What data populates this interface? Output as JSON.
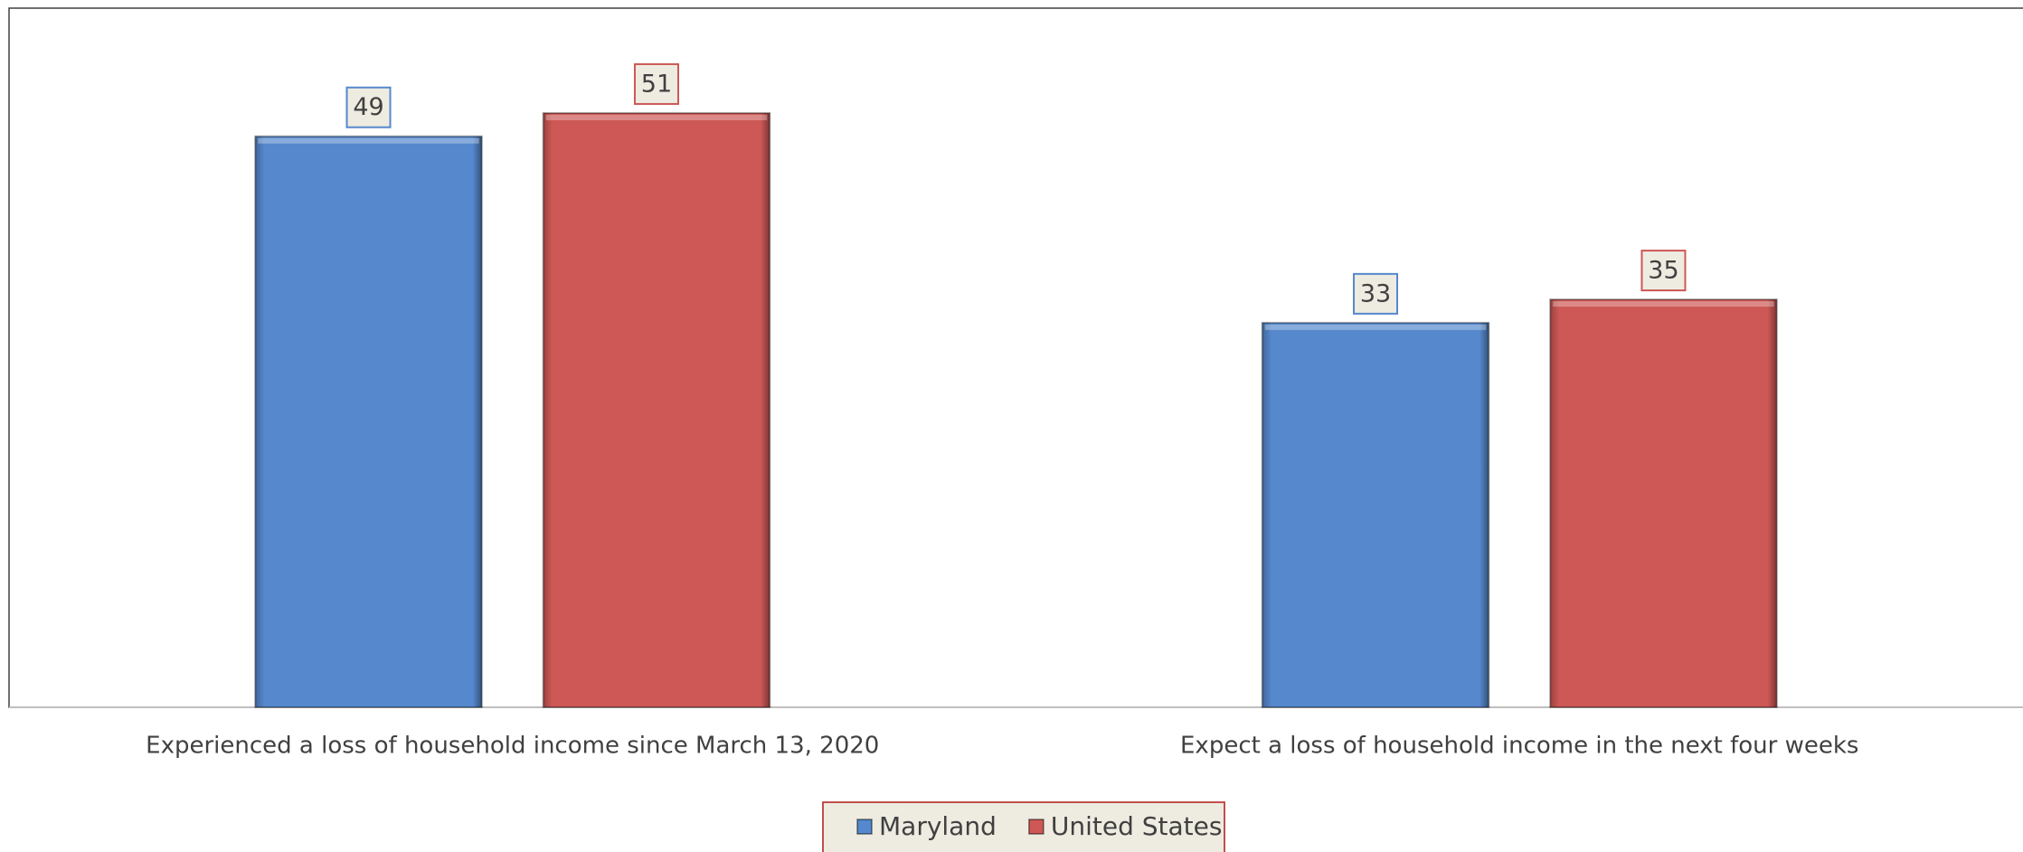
{
  "chart_data": {
    "type": "bar",
    "categories": [
      "Experienced a loss of household income since March 13, 2020",
      "Expect a loss of household income in the next four weeks"
    ],
    "series": [
      {
        "name": "Maryland",
        "color": "#5588cc",
        "values": [
          49,
          33
        ]
      },
      {
        "name": "United States",
        "color": "#cd5855",
        "values": [
          51,
          35
        ]
      }
    ],
    "ylim": [
      0,
      60
    ],
    "legend": "bottom"
  }
}
